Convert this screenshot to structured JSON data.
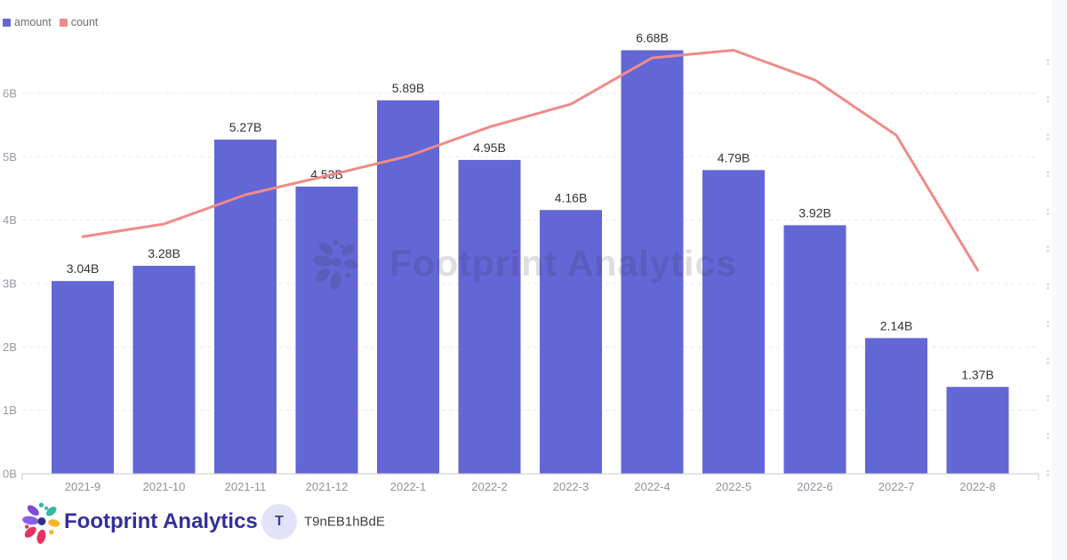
{
  "legend": [
    {
      "label": "amount",
      "color": "#6366d5"
    },
    {
      "label": "count",
      "color": "#ef8b88"
    }
  ],
  "chart_data": {
    "type": "bar",
    "title": "",
    "categories": [
      "2021-9",
      "2021-10",
      "2021-11",
      "2021-12",
      "2022-1",
      "2022-2",
      "2022-3",
      "2022-4",
      "2022-5",
      "2022-6",
      "2022-7",
      "2022-8"
    ],
    "series": [
      {
        "name": "amount",
        "type": "bar",
        "color": "#6366d5",
        "unit": "B",
        "values": [
          3.04,
          3.28,
          5.27,
          4.53,
          5.89,
          4.95,
          4.16,
          6.68,
          4.79,
          3.92,
          2.14,
          1.37
        ],
        "labels": [
          "3.04B",
          "3.28B",
          "5.27B",
          "4.53B",
          "5.89B",
          "4.95B",
          "4.16B",
          "6.68B",
          "4.79B",
          "3.92B",
          "2.14B",
          "1.37B"
        ]
      },
      {
        "name": "count",
        "type": "line",
        "color": "#ef8b88",
        "axis": "right",
        "right_axis_labels_clipped": true,
        "values_in_left_axis_units": [
          3.74,
          3.94,
          4.4,
          4.7,
          5.01,
          5.47,
          5.83,
          6.56,
          6.68,
          6.21,
          5.34,
          3.21
        ]
      }
    ],
    "ylabel": "",
    "xlabel": "",
    "y_axis": {
      "ticks": [
        "0B",
        "1B",
        "2B",
        "3B",
        "4B",
        "5B",
        "6B"
      ],
      "min": 0
    },
    "right_axis": {
      "labels_visible": false,
      "clipped_tick_count": 12
    },
    "grid": true,
    "legend_position": "top-left"
  },
  "watermark": {
    "text": "Footprint Analytics"
  },
  "footer": {
    "brand": "Footprint Analytics",
    "badge_letter": "T",
    "chart_id": "T9nEB1hBdE"
  }
}
